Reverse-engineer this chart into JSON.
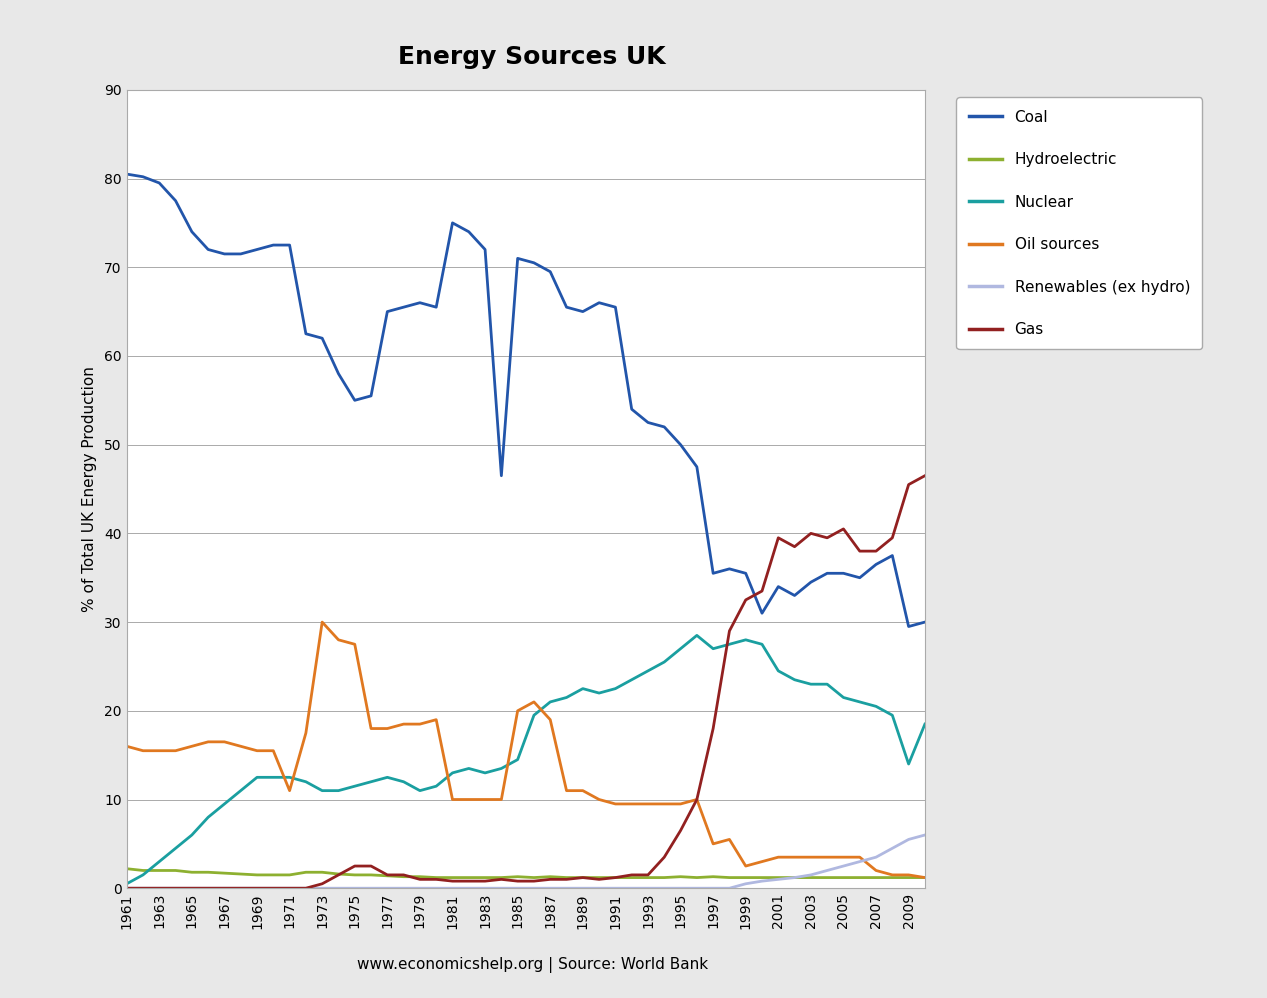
{
  "title": "Energy Sources UK",
  "xlabel": "www.economicshelp.org | Source: World Bank",
  "ylabel": "% of Total UK Energy Production",
  "years": [
    1961,
    1962,
    1963,
    1964,
    1965,
    1966,
    1967,
    1968,
    1969,
    1970,
    1971,
    1972,
    1973,
    1974,
    1975,
    1976,
    1977,
    1978,
    1979,
    1980,
    1981,
    1982,
    1983,
    1984,
    1985,
    1986,
    1987,
    1988,
    1989,
    1990,
    1991,
    1992,
    1993,
    1994,
    1995,
    1996,
    1997,
    1998,
    1999,
    2000,
    2001,
    2002,
    2003,
    2004,
    2005,
    2006,
    2007,
    2008,
    2009,
    2010
  ],
  "coal": [
    80.5,
    80.2,
    79.5,
    77.5,
    74.0,
    72.0,
    71.5,
    71.5,
    72.0,
    72.5,
    72.5,
    62.5,
    62.0,
    58.0,
    55.0,
    55.5,
    65.0,
    65.5,
    66.0,
    65.5,
    75.0,
    74.0,
    72.0,
    46.5,
    71.0,
    70.5,
    69.5,
    65.5,
    65.0,
    66.0,
    65.5,
    54.0,
    52.5,
    52.0,
    50.0,
    47.5,
    35.5,
    36.0,
    35.5,
    31.0,
    34.0,
    33.0,
    34.5,
    35.5,
    35.5,
    35.0,
    36.5,
    37.5,
    29.5,
    30.0
  ],
  "hydroelectric": [
    2.2,
    2.0,
    2.0,
    2.0,
    1.8,
    1.8,
    1.7,
    1.6,
    1.5,
    1.5,
    1.5,
    1.8,
    1.8,
    1.6,
    1.5,
    1.5,
    1.4,
    1.3,
    1.3,
    1.2,
    1.2,
    1.2,
    1.2,
    1.2,
    1.3,
    1.2,
    1.3,
    1.2,
    1.2,
    1.2,
    1.2,
    1.2,
    1.2,
    1.2,
    1.3,
    1.2,
    1.3,
    1.2,
    1.2,
    1.2,
    1.2,
    1.2,
    1.2,
    1.2,
    1.2,
    1.2,
    1.2,
    1.2,
    1.2,
    1.2
  ],
  "nuclear": [
    0.5,
    1.5,
    3.0,
    4.5,
    6.0,
    8.0,
    9.5,
    11.0,
    12.5,
    12.5,
    12.5,
    12.0,
    11.0,
    11.0,
    11.5,
    12.0,
    12.5,
    12.0,
    11.0,
    11.5,
    13.0,
    13.5,
    13.0,
    13.5,
    14.5,
    19.5,
    21.0,
    21.5,
    22.5,
    22.0,
    22.5,
    23.5,
    24.5,
    25.5,
    27.0,
    28.5,
    27.0,
    27.5,
    28.0,
    27.5,
    24.5,
    23.5,
    23.0,
    23.0,
    21.5,
    21.0,
    20.5,
    19.5,
    14.0,
    18.5
  ],
  "oil_sources": [
    16.0,
    15.5,
    15.5,
    15.5,
    16.0,
    16.5,
    16.5,
    16.0,
    15.5,
    15.5,
    11.0,
    17.5,
    30.0,
    28.0,
    27.5,
    18.0,
    18.0,
    18.5,
    18.5,
    19.0,
    10.0,
    10.0,
    10.0,
    10.0,
    20.0,
    21.0,
    19.0,
    11.0,
    11.0,
    10.0,
    9.5,
    9.5,
    9.5,
    9.5,
    9.5,
    10.0,
    5.0,
    5.5,
    2.5,
    3.0,
    3.5,
    3.5,
    3.5,
    3.5,
    3.5,
    3.5,
    2.0,
    1.5,
    1.5,
    1.2
  ],
  "renewables": [
    0.0,
    0.0,
    0.0,
    0.0,
    0.0,
    0.0,
    0.0,
    0.0,
    0.0,
    0.0,
    0.0,
    0.0,
    0.0,
    0.0,
    0.0,
    0.0,
    0.0,
    0.0,
    0.0,
    0.0,
    0.0,
    0.0,
    0.0,
    0.0,
    0.0,
    0.0,
    0.0,
    0.0,
    0.0,
    0.0,
    0.0,
    0.0,
    0.0,
    0.0,
    0.0,
    0.0,
    0.0,
    0.0,
    0.5,
    0.8,
    1.0,
    1.2,
    1.5,
    2.0,
    2.5,
    3.0,
    3.5,
    4.5,
    5.5,
    6.0
  ],
  "gas": [
    0.0,
    0.0,
    0.0,
    0.0,
    0.0,
    0.0,
    0.0,
    0.0,
    0.0,
    0.0,
    0.0,
    0.0,
    0.5,
    1.5,
    2.5,
    2.5,
    1.5,
    1.5,
    1.0,
    1.0,
    0.8,
    0.8,
    0.8,
    1.0,
    0.8,
    0.8,
    1.0,
    1.0,
    1.2,
    1.0,
    1.2,
    1.5,
    1.5,
    3.5,
    6.5,
    10.0,
    18.0,
    29.0,
    32.5,
    33.5,
    39.5,
    38.5,
    40.0,
    39.5,
    40.5,
    38.0,
    38.0,
    39.5,
    45.5,
    46.5
  ],
  "colors": {
    "coal": "#2255AA",
    "hydroelectric": "#8DB030",
    "nuclear": "#1A9FA0",
    "oil_sources": "#E07820",
    "renewables": "#B0B8E0",
    "gas": "#922020"
  },
  "ylim": [
    0,
    90
  ],
  "yticks": [
    0,
    10,
    20,
    30,
    40,
    50,
    60,
    70,
    80,
    90
  ],
  "figure_facecolor": "#E8E8E8",
  "plot_facecolor": "#FFFFFF",
  "border_color": "#AAAAAA",
  "grid_color": "#AAAAAA",
  "title_fontsize": 18,
  "label_fontsize": 11,
  "tick_fontsize": 10,
  "legend_fontsize": 11
}
